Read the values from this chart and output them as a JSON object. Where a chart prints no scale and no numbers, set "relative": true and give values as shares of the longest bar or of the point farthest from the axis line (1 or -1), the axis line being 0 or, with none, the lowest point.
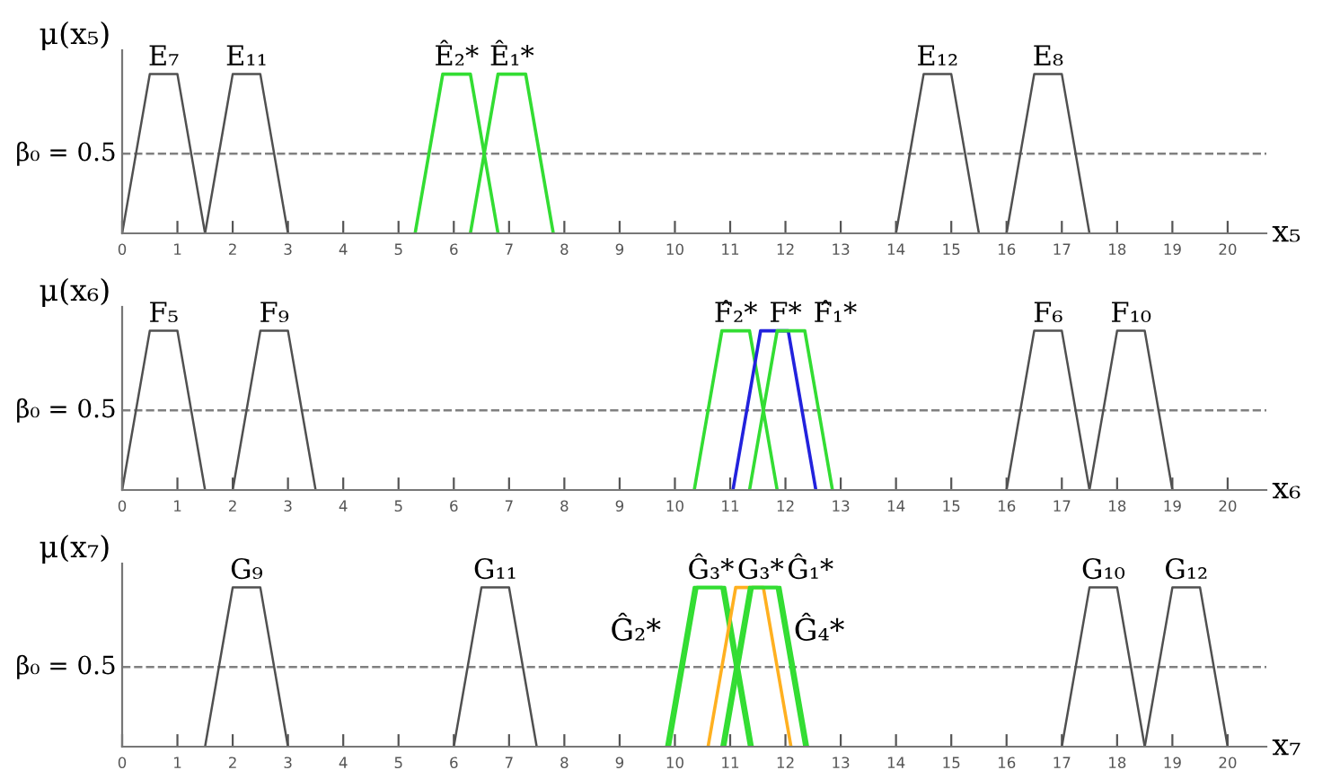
{
  "chart_data": [
    {
      "type": "line",
      "relative": true,
      "ylabel": "μ(x₅)",
      "xlabel": "x₅",
      "xlim": [
        0,
        20.7
      ],
      "xticks": [
        0,
        1,
        2,
        3,
        4,
        5,
        6,
        7,
        8,
        9,
        10,
        11,
        12,
        13,
        14,
        15,
        16,
        17,
        18,
        19,
        20
      ],
      "grid": false,
      "legend": false,
      "line_style": "solid",
      "ref_lines": [
        {
          "axis": "y",
          "value": 0.5,
          "label": "β₀ = 0.5",
          "color": "#808080",
          "line_style": "dashed"
        }
      ],
      "series": [
        {
          "name": "E₇",
          "color": "#505050",
          "x": [
            0,
            0.5,
            1,
            1.5
          ],
          "values": [
            0,
            1,
            1,
            0
          ]
        },
        {
          "name": "E₁₁",
          "color": "#505050",
          "x": [
            1.5,
            2,
            2.5,
            3
          ],
          "values": [
            0,
            1,
            1,
            0
          ]
        },
        {
          "name": "Ê₂*",
          "color": "#33dd33",
          "x": [
            5.3,
            5.8,
            6.3,
            6.8
          ],
          "values": [
            0,
            1,
            1,
            0
          ]
        },
        {
          "name": "Ê₁*",
          "color": "#33dd33",
          "x": [
            6.3,
            6.8,
            7.3,
            7.8
          ],
          "values": [
            0,
            1,
            1,
            0
          ]
        },
        {
          "name": "E₁₂",
          "color": "#505050",
          "x": [
            14,
            14.5,
            15,
            15.5
          ],
          "values": [
            0,
            1,
            1,
            0
          ]
        },
        {
          "name": "E₈",
          "color": "#505050",
          "x": [
            16,
            16.5,
            17,
            17.5
          ],
          "values": [
            0,
            1,
            1,
            0
          ]
        }
      ]
    },
    {
      "type": "line",
      "relative": true,
      "ylabel": "μ(x₆)",
      "xlabel": "x₆",
      "xlim": [
        0,
        20.7
      ],
      "xticks": [
        0,
        1,
        2,
        3,
        4,
        5,
        6,
        7,
        8,
        9,
        10,
        11,
        12,
        13,
        14,
        15,
        16,
        17,
        18,
        19,
        20
      ],
      "grid": false,
      "legend": false,
      "line_style": "solid",
      "ref_lines": [
        {
          "axis": "y",
          "value": 0.5,
          "label": "β₀ = 0.5",
          "color": "#808080",
          "line_style": "dashed"
        }
      ],
      "series": [
        {
          "name": "F₅",
          "color": "#505050",
          "x": [
            0,
            0.5,
            1,
            1.5
          ],
          "values": [
            0,
            1,
            1,
            0
          ]
        },
        {
          "name": "F₉",
          "color": "#505050",
          "x": [
            2,
            2.5,
            3,
            3.5
          ],
          "values": [
            0,
            1,
            1,
            0
          ]
        },
        {
          "name": "F̂₂*",
          "color": "#33dd33",
          "x": [
            10.35,
            10.85,
            11.35,
            11.85
          ],
          "values": [
            0,
            1,
            1,
            0
          ]
        },
        {
          "name": "F*",
          "color": "#2222dd",
          "x": [
            11.05,
            11.55,
            12.05,
            12.55
          ],
          "values": [
            0,
            1,
            1,
            0
          ]
        },
        {
          "name": "F̂₁*",
          "color": "#33dd33",
          "x": [
            11.35,
            11.85,
            12.35,
            12.85
          ],
          "values": [
            0,
            1,
            1,
            0
          ]
        },
        {
          "name": "F₆",
          "color": "#505050",
          "x": [
            16,
            16.5,
            17,
            17.5
          ],
          "values": [
            0,
            1,
            1,
            0
          ]
        },
        {
          "name": "F₁₀",
          "color": "#505050",
          "x": [
            17.5,
            18,
            18.5,
            19
          ],
          "values": [
            0,
            1,
            1,
            0
          ]
        }
      ]
    },
    {
      "type": "line",
      "relative": true,
      "ylabel": "μ(x₇)",
      "xlabel": "x₇",
      "xlim": [
        0,
        20.7
      ],
      "xticks": [
        0,
        1,
        2,
        3,
        4,
        5,
        6,
        7,
        8,
        9,
        10,
        11,
        12,
        13,
        14,
        15,
        16,
        17,
        18,
        19,
        20
      ],
      "grid": false,
      "legend": false,
      "line_style": "solid",
      "ref_lines": [
        {
          "axis": "y",
          "value": 0.5,
          "label": "β₀ = 0.5",
          "color": "#808080",
          "line_style": "dashed"
        }
      ],
      "series": [
        {
          "name": "G₉",
          "color": "#505050",
          "x": [
            1.5,
            2,
            2.5,
            3
          ],
          "values": [
            0,
            1,
            1,
            0
          ]
        },
        {
          "name": "G₁₁",
          "color": "#505050",
          "x": [
            6,
            6.5,
            7,
            7.5
          ],
          "values": [
            0,
            1,
            1,
            0
          ]
        },
        {
          "name": "Ĝ₃*",
          "color": "#33dd33",
          "x": [
            9.9,
            10.4,
            10.9,
            11.4
          ],
          "values": [
            0,
            1,
            1,
            0
          ]
        },
        {
          "name": "Ĝ₂*",
          "color": "#33dd33",
          "x": [
            9.85,
            10.35,
            10.85,
            11.35
          ],
          "values": [
            0,
            1,
            1,
            0
          ]
        },
        {
          "name": "G₃*",
          "color": "#ffb020",
          "x": [
            10.6,
            11.1,
            11.6,
            12.1
          ],
          "values": [
            0,
            1,
            1,
            0
          ]
        },
        {
          "name": "Ĝ₁*",
          "color": "#33dd33",
          "x": [
            10.9,
            11.4,
            11.9,
            12.4
          ],
          "values": [
            0,
            1,
            1,
            0
          ]
        },
        {
          "name": "Ĝ₄*",
          "color": "#33dd33",
          "x": [
            10.85,
            11.35,
            11.85,
            12.35
          ],
          "values": [
            0,
            1,
            1,
            0
          ]
        },
        {
          "name": "G₁₀",
          "color": "#505050",
          "x": [
            17,
            17.5,
            18,
            18.5
          ],
          "values": [
            0,
            1,
            1,
            0
          ]
        },
        {
          "name": "G₁₂",
          "color": "#505050",
          "x": [
            18.5,
            19,
            19.5,
            20
          ],
          "values": [
            0,
            1,
            1,
            0
          ]
        }
      ]
    }
  ]
}
